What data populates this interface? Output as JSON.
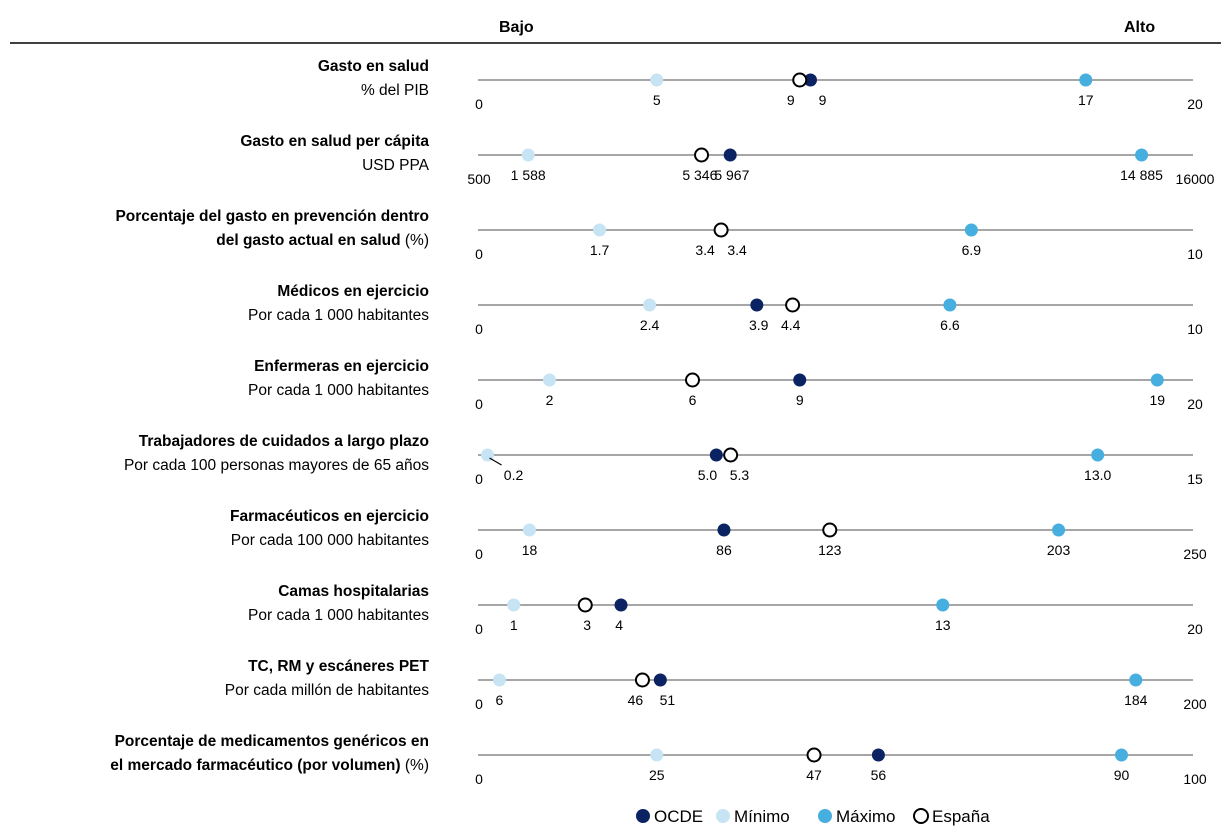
{
  "chart_data": {
    "type": "dot-range",
    "header": {
      "low": "Bajo",
      "high": "Alto"
    },
    "legend": {
      "placement": "bottom",
      "items": [
        {
          "key": "oecd",
          "label": "OCDE",
          "color": "#0b2362",
          "fill": true
        },
        {
          "key": "min",
          "label": "Mínimo",
          "color": "#c7e4f4",
          "fill": true
        },
        {
          "key": "max",
          "label": "Máximo",
          "color": "#46afe0",
          "fill": true
        },
        {
          "key": "spain",
          "label": "España",
          "color": "#000000",
          "fill": false
        }
      ]
    },
    "rows": [
      {
        "title": "Gasto en salud",
        "title2": "",
        "suffix": "",
        "subtitle": "% del PIB",
        "min_axis": 0,
        "max_axis": 20,
        "min_axis_label": "0",
        "max_axis_label": "20",
        "values": {
          "min": 5,
          "oecd": 9.3,
          "spain": 9.0,
          "max": 17
        },
        "labels": {
          "min": "5",
          "oecd": "9",
          "spain": "9",
          "max": "17"
        }
      },
      {
        "title": "Gasto en salud per cápita",
        "title2": "",
        "suffix": "",
        "subtitle": "USD PPA",
        "min_axis": 500,
        "max_axis": 16000,
        "min_axis_label": "500",
        "max_axis_label": "16000",
        "values": {
          "min": 1588,
          "oecd": 5967,
          "spain": 5346,
          "max": 14885
        },
        "labels": {
          "min": "1 588",
          "oecd": "5 967",
          "spain": "5 346",
          "max": "14 885"
        }
      },
      {
        "title": "Porcentaje del gasto en prevención dentro",
        "title2": "del gasto actual en salud",
        "suffix": "(%)",
        "subtitle": "",
        "min_axis": 0,
        "max_axis": 10,
        "min_axis_label": "0",
        "max_axis_label": "10",
        "values": {
          "min": 1.7,
          "oecd": 3.4,
          "spain": 3.4,
          "max": 6.9
        },
        "labels": {
          "min": "1.7",
          "oecd": "3.4",
          "spain": "3.4",
          "max": "6.9"
        }
      },
      {
        "title": "Médicos en ejercicio",
        "title2": "",
        "suffix": "",
        "subtitle": "Por cada 1 000 habitantes",
        "min_axis": 0,
        "max_axis": 10,
        "min_axis_label": "0",
        "max_axis_label": "10",
        "values": {
          "min": 2.4,
          "oecd": 3.9,
          "spain": 4.4,
          "max": 6.6
        },
        "labels": {
          "min": "2.4",
          "oecd": "3.9",
          "spain": "4.4",
          "max": "6.6"
        }
      },
      {
        "title": "Enfermeras en ejercicio",
        "title2": "",
        "suffix": "",
        "subtitle": "Por cada 1 000 habitantes",
        "min_axis": 0,
        "max_axis": 20,
        "min_axis_label": "0",
        "max_axis_label": "20",
        "values": {
          "min": 2,
          "oecd": 9,
          "spain": 6,
          "max": 19
        },
        "labels": {
          "min": "2",
          "oecd": "9",
          "spain": "6",
          "max": "19"
        }
      },
      {
        "title": "Trabajadores de cuidados a largo plazo",
        "title2": "",
        "suffix": "",
        "subtitle": "Por cada 100 personas mayores de 65 años",
        "min_axis": 0,
        "max_axis": 15,
        "min_axis_label": "0",
        "max_axis_label": "15",
        "values": {
          "min": 0.2,
          "oecd": 5.0,
          "spain": 5.3,
          "max": 13.0
        },
        "labels": {
          "min": "0.2",
          "oecd": "5.0",
          "spain": "5.3",
          "max": "13.0"
        }
      },
      {
        "title": "Farmacéuticos en ejercicio",
        "title2": "",
        "suffix": "",
        "subtitle": "Por cada 100 000 habitantes",
        "min_axis": 0,
        "max_axis": 250,
        "min_axis_label": "0",
        "max_axis_label": "250",
        "values": {
          "min": 18,
          "oecd": 86,
          "spain": 123,
          "max": 203
        },
        "labels": {
          "min": "18",
          "oecd": "86",
          "spain": "123",
          "max": "203"
        }
      },
      {
        "title": "Camas hospitalarias",
        "title2": "",
        "suffix": "",
        "subtitle": "Por cada 1 000 habitantes",
        "min_axis": 0,
        "max_axis": 20,
        "min_axis_label": "0",
        "max_axis_label": "20",
        "values": {
          "min": 1,
          "oecd": 4,
          "spain": 3,
          "max": 13
        },
        "labels": {
          "min": "1",
          "oecd": "4",
          "spain": "3",
          "max": "13"
        }
      },
      {
        "title": "TC, RM y escáneres PET",
        "title2": "",
        "suffix": "",
        "subtitle": "Por cada millón de habitantes",
        "min_axis": 0,
        "max_axis": 200,
        "min_axis_label": "0",
        "max_axis_label": "200",
        "values": {
          "min": 6,
          "oecd": 51,
          "spain": 46,
          "max": 184
        },
        "labels": {
          "min": "6",
          "oecd": "51",
          "spain": "46",
          "max": "184"
        }
      },
      {
        "title": "Porcentaje de medicamentos genéricos en",
        "title2": "el mercado farmacéutico (por volumen)",
        "suffix": "(%)",
        "subtitle": "",
        "min_axis": 0,
        "max_axis": 100,
        "min_axis_label": "0",
        "max_axis_label": "100",
        "values": {
          "min": 25,
          "oecd": 56,
          "spain": 47,
          "max": 90
        },
        "labels": {
          "min": "25",
          "oecd": "56",
          "spain": "47",
          "max": "90"
        }
      }
    ]
  }
}
